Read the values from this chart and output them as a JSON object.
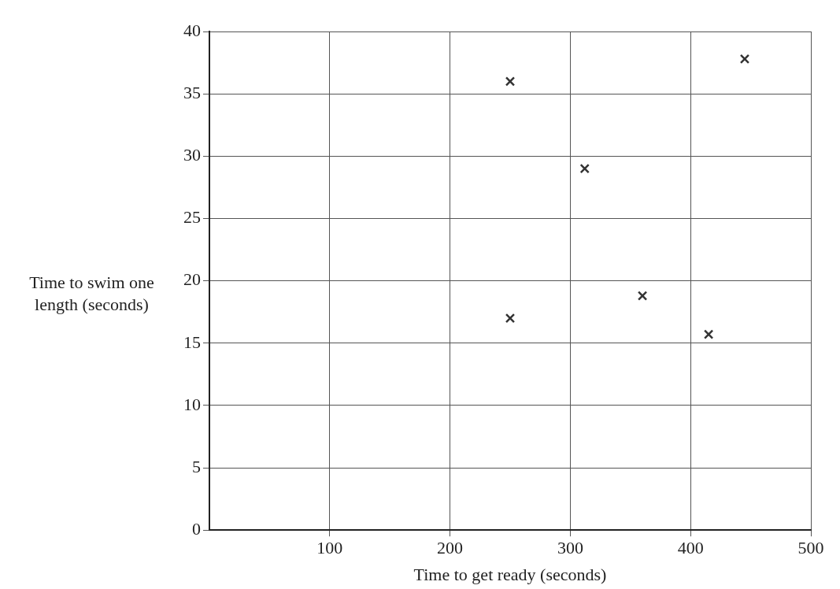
{
  "chart_data": {
    "type": "scatter",
    "xlabel": "Time to get ready (seconds)",
    "ylabel": "Time to swim one\nlength (seconds)",
    "x": [
      250,
      250,
      312,
      360,
      415,
      445
    ],
    "values": [
      36,
      17,
      29,
      18.8,
      15.7,
      37.8
    ],
    "color": "#333333",
    "marker": "cross",
    "xlim": [
      0,
      500
    ],
    "xticks": [
      100,
      200,
      300,
      400,
      500
    ],
    "ylim": [
      0,
      40
    ],
    "yticks": [
      0,
      5,
      10,
      15,
      20,
      25,
      30,
      35,
      40
    ],
    "grid": true,
    "legend": false
  }
}
